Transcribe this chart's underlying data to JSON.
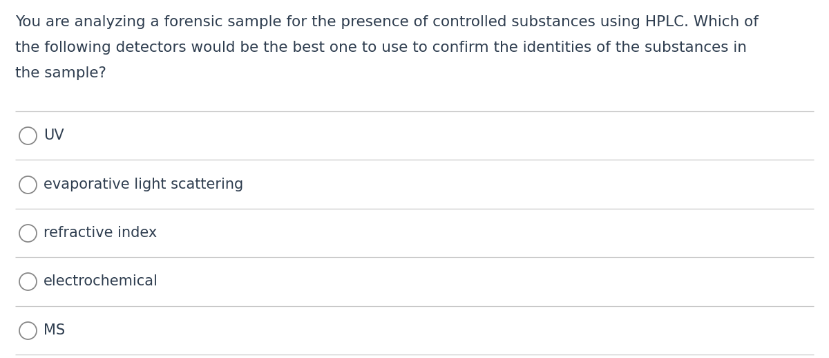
{
  "background_color": "#ffffff",
  "question_lines": [
    "You are analyzing a forensic sample for the presence of controlled substances using HPLC. Which of",
    "the following detectors would be the best one to use to confirm the identities of the substances in",
    "the sample?"
  ],
  "options": [
    "UV",
    "evaporative light scattering",
    "refractive index",
    "electrochemical",
    "MS"
  ],
  "text_color": "#2e3d4f",
  "line_color": "#c8c8c8",
  "circle_edge_color": "#888888",
  "question_fontsize": 15.5,
  "option_fontsize": 15.0,
  "figsize": [
    12.0,
    5.18
  ],
  "dpi": 100
}
